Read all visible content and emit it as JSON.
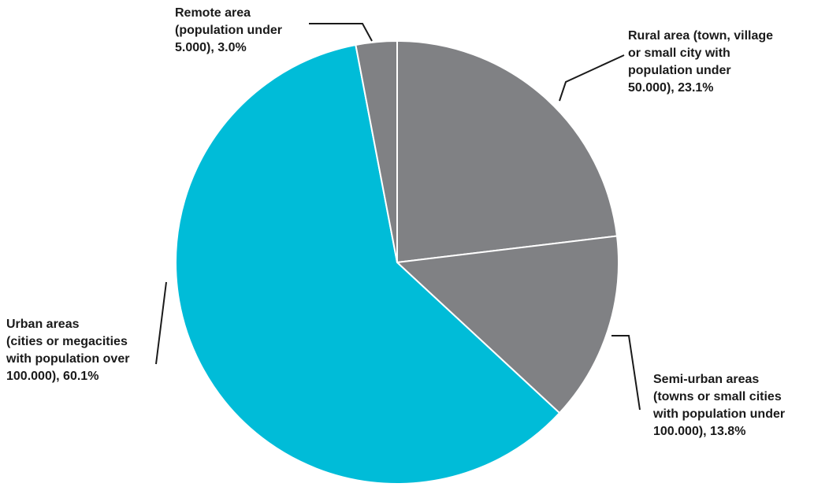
{
  "chart_data": {
    "type": "pie",
    "title": "",
    "start_angle": "12 o'clock",
    "direction": "clockwise",
    "slices": [
      {
        "name": "Rural area (town, village or small city with population under 50.000)",
        "value": 23.1,
        "color": "#808184",
        "label_lines": [
          "Rural area (town, village",
          "or small city with",
          "population under",
          "50.000), 23.1%"
        ]
      },
      {
        "name": "Semi-urban areas (towns or small cities with population under 100.000)",
        "value": 13.8,
        "color": "#808184",
        "label_lines": [
          "Semi-urban areas",
          "(towns or small cities",
          "with population under",
          "100.000), 13.8%"
        ]
      },
      {
        "name": "Urban areas (cities or megacities with population over 100.000)",
        "value": 60.1,
        "color": "#00bcd8",
        "label_lines": [
          "Urban areas",
          "(cities or megacities",
          "with population over",
          "100.000), 60.1%"
        ]
      },
      {
        "name": "Remote area (population under 5.000)",
        "value": 3.0,
        "color": "#808184",
        "label_lines": [
          "Remote area",
          "(population under",
          "5.000), 3.0%"
        ]
      }
    ]
  }
}
